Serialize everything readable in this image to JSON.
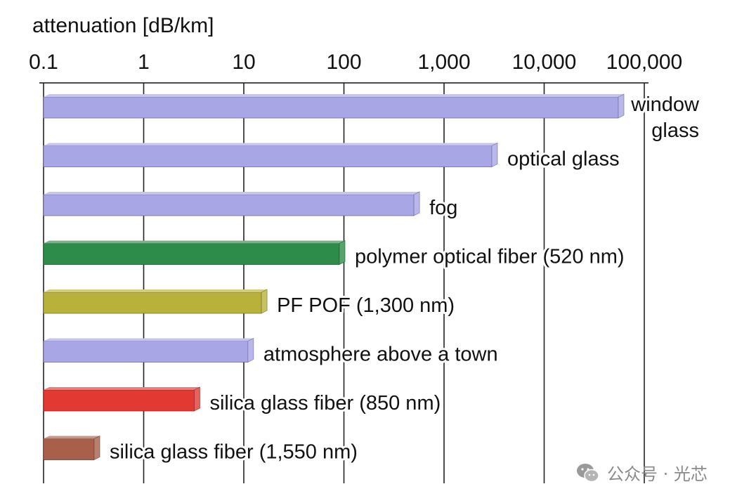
{
  "chart_data": {
    "type": "bar",
    "orientation": "horizontal",
    "scale": "log",
    "xlabel": "attenuation [dB/km]",
    "xlim": [
      0.1,
      100000
    ],
    "ticks": [
      {
        "value": 0.1,
        "label": "0.1"
      },
      {
        "value": 1,
        "label": "1"
      },
      {
        "value": 10,
        "label": "10"
      },
      {
        "value": 100,
        "label": "100"
      },
      {
        "value": 1000,
        "label": "1,000"
      },
      {
        "value": 10000,
        "label": "10,000"
      },
      {
        "value": 100000,
        "label": "100,000"
      }
    ],
    "grid": true,
    "bars": [
      {
        "label": [
          "window",
          "glass"
        ],
        "value": 55000,
        "color": "#a9a6e6",
        "label_align": "right"
      },
      {
        "label": [
          "optical glass"
        ],
        "value": 3000,
        "color": "#a9a6e6"
      },
      {
        "label": [
          "fog"
        ],
        "value": 500,
        "color": "#a9a6e6"
      },
      {
        "label": [
          "polymer optical fiber (520 nm)"
        ],
        "value": 90,
        "color": "#2e8c4a"
      },
      {
        "label": [
          "PF POF (1,300 nm)"
        ],
        "value": 15,
        "color": "#b8b23a"
      },
      {
        "label": [
          "atmosphere above a town"
        ],
        "value": 11,
        "color": "#a9a6e6"
      },
      {
        "label": [
          "silica glass fiber (850 nm)"
        ],
        "value": 3.2,
        "color": "#e23a33"
      },
      {
        "label": [
          "silica glass fiber  (1,550 nm)"
        ],
        "value": 0.32,
        "color": "#a9604a"
      }
    ]
  },
  "watermark": {
    "text": "公众号 · 光芯"
  }
}
